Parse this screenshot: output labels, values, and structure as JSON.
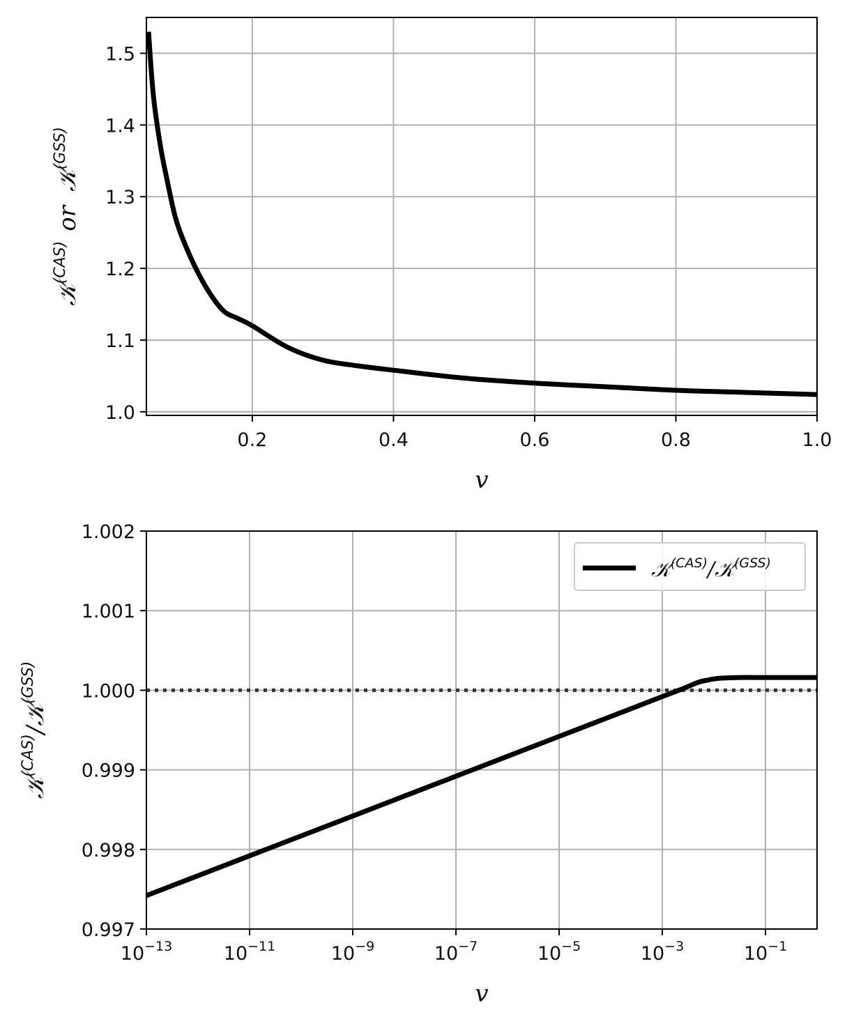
{
  "chart_data": [
    {
      "type": "line",
      "xlabel": "v",
      "ylabel": "𝒦(CAS) or 𝒦(GSS)",
      "ylabel_parts": {
        "k1": "𝒦",
        "sup1": "(CAS)",
        "or": "or",
        "k2": "𝒦",
        "sup2": "(GSS)"
      },
      "xlim": [
        0.05,
        1.0
      ],
      "ylim": [
        0.995,
        1.55
      ],
      "x_scale": "linear",
      "grid": true,
      "x_ticks": [
        {
          "value": 0.2,
          "label": "0.2"
        },
        {
          "value": 0.4,
          "label": "0.4"
        },
        {
          "value": 0.6,
          "label": "0.6"
        },
        {
          "value": 0.8,
          "label": "0.8"
        },
        {
          "value": 1.0,
          "label": "1.0"
        }
      ],
      "y_ticks": [
        {
          "value": 1.0,
          "label": "1.0"
        },
        {
          "value": 1.1,
          "label": "1.1"
        },
        {
          "value": 1.2,
          "label": "1.2"
        },
        {
          "value": 1.3,
          "label": "1.3"
        },
        {
          "value": 1.4,
          "label": "1.4"
        },
        {
          "value": 1.5,
          "label": "1.5"
        }
      ],
      "series": [
        {
          "color": "#000000",
          "x": [
            0.053,
            0.06,
            0.07,
            0.08,
            0.09,
            0.1,
            0.12,
            0.14,
            0.16,
            0.18,
            0.2,
            0.25,
            0.3,
            0.35,
            0.4,
            0.5,
            0.6,
            0.7,
            0.8,
            0.9,
            1.0
          ],
          "y": [
            1.53,
            1.44,
            1.37,
            1.32,
            1.275,
            1.245,
            1.2,
            1.165,
            1.14,
            1.13,
            1.12,
            1.09,
            1.072,
            1.064,
            1.058,
            1.047,
            1.04,
            1.035,
            1.03,
            1.027,
            1.024
          ]
        }
      ]
    },
    {
      "type": "line",
      "xlabel": "v",
      "ylabel": "𝒦(CAS)/𝒦(GSS)",
      "ylabel_parts": {
        "k1": "𝒦",
        "sup1": "(CAS)",
        "slash": "/",
        "k2": "𝒦",
        "sup2": "(GSS)"
      },
      "xlim": [
        -13,
        0
      ],
      "ylim": [
        0.997,
        1.002
      ],
      "x_scale": "log",
      "grid": true,
      "legend": {
        "placement": "upper right",
        "entries": [
          {
            "k1": "𝒦",
            "sup1": "(CAS)",
            "slash": "/",
            "k2": "𝒦",
            "sup2": "(GSS)"
          }
        ]
      },
      "x_ticks": [
        {
          "value": -13,
          "base": "10",
          "exp": "−13"
        },
        {
          "value": -11,
          "base": "10",
          "exp": "−11"
        },
        {
          "value": -9,
          "base": "10",
          "exp": "−9"
        },
        {
          "value": -7,
          "base": "10",
          "exp": "−7"
        },
        {
          "value": -5,
          "base": "10",
          "exp": "−5"
        },
        {
          "value": -3,
          "base": "10",
          "exp": "−3"
        },
        {
          "value": -1,
          "base": "10",
          "exp": "−1"
        }
      ],
      "y_ticks": [
        {
          "value": 0.997,
          "label": "0.997"
        },
        {
          "value": 0.998,
          "label": "0.998"
        },
        {
          "value": 0.999,
          "label": "0.999"
        },
        {
          "value": 1.0,
          "label": "1.000"
        },
        {
          "value": 1.001,
          "label": "1.001"
        },
        {
          "value": 1.002,
          "label": "1.002"
        }
      ],
      "reference_line": {
        "y": 1.0,
        "style": "dotted",
        "color": "#333333"
      },
      "series": [
        {
          "color": "#000000",
          "x": [
            -13,
            -12,
            -11,
            -10,
            -9,
            -8,
            -7,
            -6,
            -5,
            -4,
            -3,
            -2.6,
            -2.3,
            -2.1,
            -1.9,
            -1.5,
            -1,
            0
          ],
          "y": [
            0.99742,
            0.99767,
            0.99792,
            0.99817,
            0.99842,
            0.99867,
            0.99892,
            0.99917,
            0.99942,
            0.99967,
            0.99992,
            1.00002,
            1.0001,
            1.00013,
            1.00015,
            1.00016,
            1.00016,
            1.00016
          ]
        }
      ]
    }
  ]
}
